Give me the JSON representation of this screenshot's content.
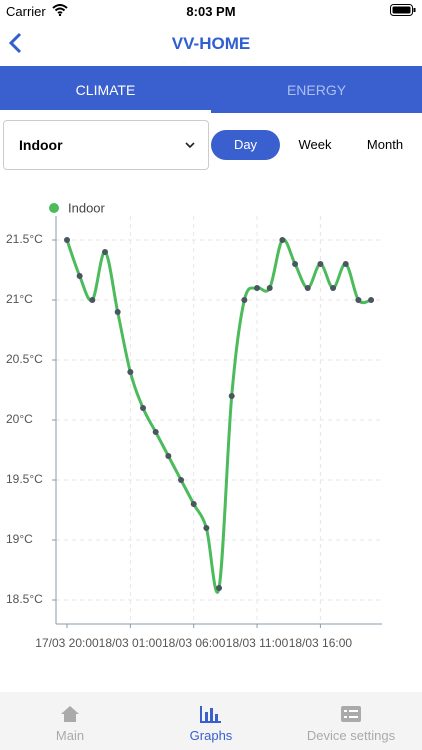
{
  "status_bar": {
    "carrier": "Carrier",
    "time": "8:03 PM"
  },
  "header": {
    "title": "VV-HOME"
  },
  "tabs": [
    "CLIMATE",
    "ENERGY"
  ],
  "location_select": "Indoor",
  "periods": [
    "Day",
    "Week",
    "Month"
  ],
  "chart_data": {
    "type": "line",
    "categories": [
      "17/03 20:00",
      null,
      null,
      null,
      null,
      "18/03 01:00",
      null,
      null,
      null,
      null,
      "18/03 06:00",
      null,
      null,
      null,
      null,
      "18/03 11:00",
      null,
      null,
      null,
      null,
      "18/03 16:00",
      null,
      null,
      null,
      null
    ],
    "series": [
      {
        "name": "Indoor",
        "color": "#4cbb5c",
        "values": [
          21.5,
          21.2,
          21.0,
          21.4,
          20.9,
          20.4,
          20.1,
          19.9,
          19.7,
          19.5,
          19.3,
          19.1,
          18.6,
          20.2,
          21.0,
          21.1,
          21.1,
          21.5,
          21.3,
          21.1,
          21.3,
          21.1,
          21.3,
          21.0,
          21.0
        ]
      }
    ],
    "ylim": [
      18.3,
      21.7
    ],
    "yticks": [
      {
        "value": 18.5,
        "label": "18.5°C"
      },
      {
        "value": 19,
        "label": "19°C"
      },
      {
        "value": 19.5,
        "label": "19.5°C"
      },
      {
        "value": 20,
        "label": "20°C"
      },
      {
        "value": 20.5,
        "label": "20.5°C"
      },
      {
        "value": 21,
        "label": "21°C"
      },
      {
        "value": 21.5,
        "label": "21.5°C"
      }
    ],
    "grid": true
  },
  "bottom_nav": [
    "Main",
    "Graphs",
    "Device settings"
  ]
}
